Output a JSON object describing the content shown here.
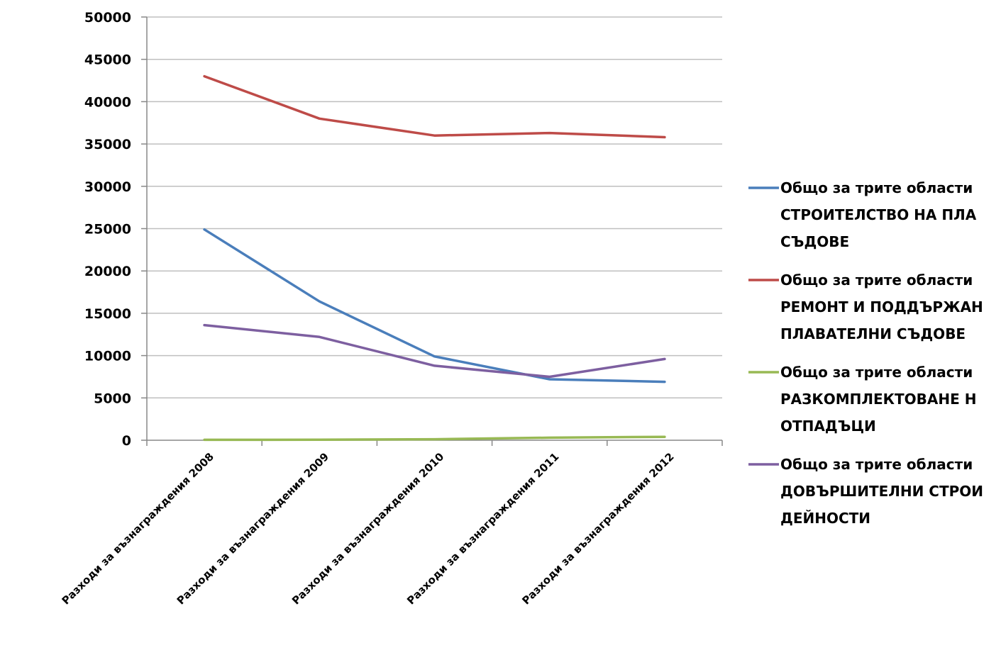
{
  "chart_data": {
    "type": "line",
    "categories": [
      "Разходи за възнаграждения 2008",
      "Разходи за възнаграждения 2009",
      "Разходи за възнаграждения 2010",
      "Разходи за възнаграждения 2011",
      "Разходи за възнаграждения 2012"
    ],
    "ylim": [
      0,
      50000
    ],
    "yticks": [
      0,
      5000,
      10000,
      15000,
      20000,
      25000,
      30000,
      35000,
      40000,
      45000,
      50000
    ],
    "grid": true,
    "legend_position": "right",
    "series": [
      {
        "name_lines": [
          "Общо за трите области",
          "СТРОИТЕЛСТВО НА ПЛА",
          "СЪДОВЕ"
        ],
        "color": "#4a7ebb",
        "values": [
          24900,
          16400,
          9900,
          7200,
          6900
        ]
      },
      {
        "name_lines": [
          "Общо за трите области",
          "РЕМОНТ И ПОДДЪРЖАН",
          "ПЛАВАТЕЛНИ СЪДОВЕ"
        ],
        "color": "#be4b48",
        "values": [
          43000,
          38000,
          36000,
          36300,
          35800
        ]
      },
      {
        "name_lines": [
          "Общо за трите области",
          "РАЗКОМПЛЕКТОВАНЕ Н",
          "ОТПАДЪЦИ"
        ],
        "color": "#98b954",
        "values": [
          50,
          60,
          120,
          300,
          400
        ]
      },
      {
        "name_lines": [
          "Общо за трите области",
          "ДОВЪРШИТЕЛНИ СТРОИ",
          "ДЕЙНОСТИ"
        ],
        "color": "#7d5fa0",
        "values": [
          13600,
          12200,
          8800,
          7500,
          9600
        ]
      }
    ]
  }
}
